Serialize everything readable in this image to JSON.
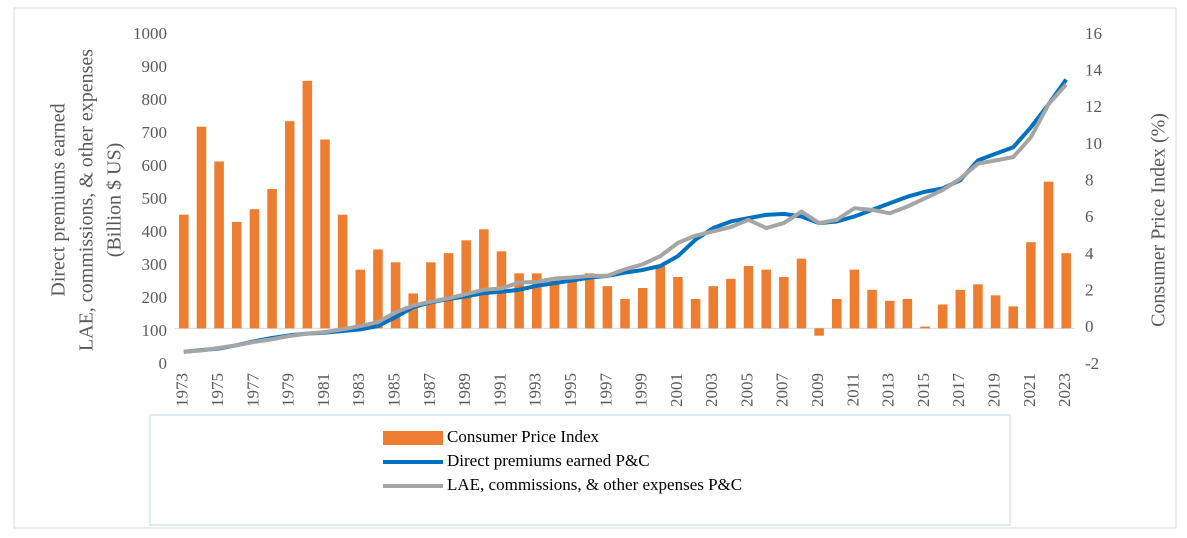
{
  "chart_data": {
    "type": "bar_line",
    "y_label": [
      "Direct premiums earned",
      "LAE, commissions, & other expenses",
      "(Billion $ US)"
    ],
    "y2_label": "Consumer Price Index (%)",
    "categories": [
      "1973",
      null,
      "1975",
      null,
      "1977",
      null,
      "1979",
      null,
      "1981",
      null,
      "1983",
      null,
      "1985",
      null,
      "1987",
      null,
      "1989",
      null,
      "1991",
      null,
      "1993",
      null,
      "1995",
      null,
      "1997",
      null,
      "1999",
      null,
      "2001",
      null,
      "2003",
      null,
      "2005",
      null,
      "2007",
      null,
      "2009",
      null,
      "2011",
      null,
      "2013",
      null,
      "2015",
      null,
      "2017",
      null,
      "2019",
      null,
      "2021",
      null,
      "2023"
    ],
    "ylim": [
      0,
      1000
    ],
    "yticks": [
      0,
      100,
      200,
      300,
      400,
      500,
      600,
      700,
      800,
      900,
      1000
    ],
    "y2lim": [
      -2,
      16
    ],
    "y2ticks": [
      -2,
      0,
      2,
      4,
      6,
      8,
      10,
      12,
      14,
      16
    ],
    "series": [
      {
        "name": "Consumer Price Index",
        "type": "bar",
        "axis": "y2",
        "color": "#ed7d31",
        "values": [
          6.2,
          11.0,
          9.1,
          5.8,
          6.5,
          7.6,
          11.3,
          13.5,
          10.3,
          6.2,
          3.2,
          4.3,
          3.6,
          1.9,
          3.6,
          4.1,
          4.8,
          5.4,
          4.2,
          3.0,
          3.0,
          2.6,
          2.8,
          3.0,
          2.3,
          1.6,
          2.2,
          3.4,
          2.8,
          1.6,
          2.3,
          2.7,
          3.4,
          3.2,
          2.8,
          3.8,
          -0.4,
          1.6,
          3.2,
          2.1,
          1.5,
          1.6,
          0.1,
          1.3,
          2.1,
          2.4,
          1.8,
          1.2,
          4.7,
          8.0,
          4.1
        ]
      },
      {
        "name": "Direct premiums earned P&C",
        "type": "line",
        "color": "#0070c0",
        "values": [
          40,
          45,
          50,
          60,
          72,
          82,
          90,
          95,
          98,
          103,
          108,
          118,
          145,
          175,
          190,
          200,
          208,
          218,
          222,
          228,
          240,
          248,
          256,
          265,
          270,
          280,
          288,
          300,
          330,
          380,
          415,
          435,
          445,
          455,
          458,
          450,
          430,
          435,
          450,
          470,
          490,
          510,
          525,
          535,
          560,
          620,
          640,
          660,
          720,
          790,
          865
        ]
      },
      {
        "name": "LAE, commissions, & other expenses P&C",
        "type": "line",
        "color": "#a5a5a5",
        "values": [
          40,
          44,
          52,
          60,
          70,
          78,
          88,
          95,
          100,
          108,
          118,
          130,
          160,
          180,
          192,
          202,
          215,
          228,
          232,
          250,
          252,
          262,
          265,
          270,
          270,
          290,
          305,
          330,
          370,
          392,
          405,
          418,
          440,
          415,
          430,
          465,
          430,
          440,
          475,
          470,
          460,
          480,
          505,
          530,
          565,
          610,
          620,
          630,
          690,
          790,
          850
        ]
      }
    ]
  }
}
